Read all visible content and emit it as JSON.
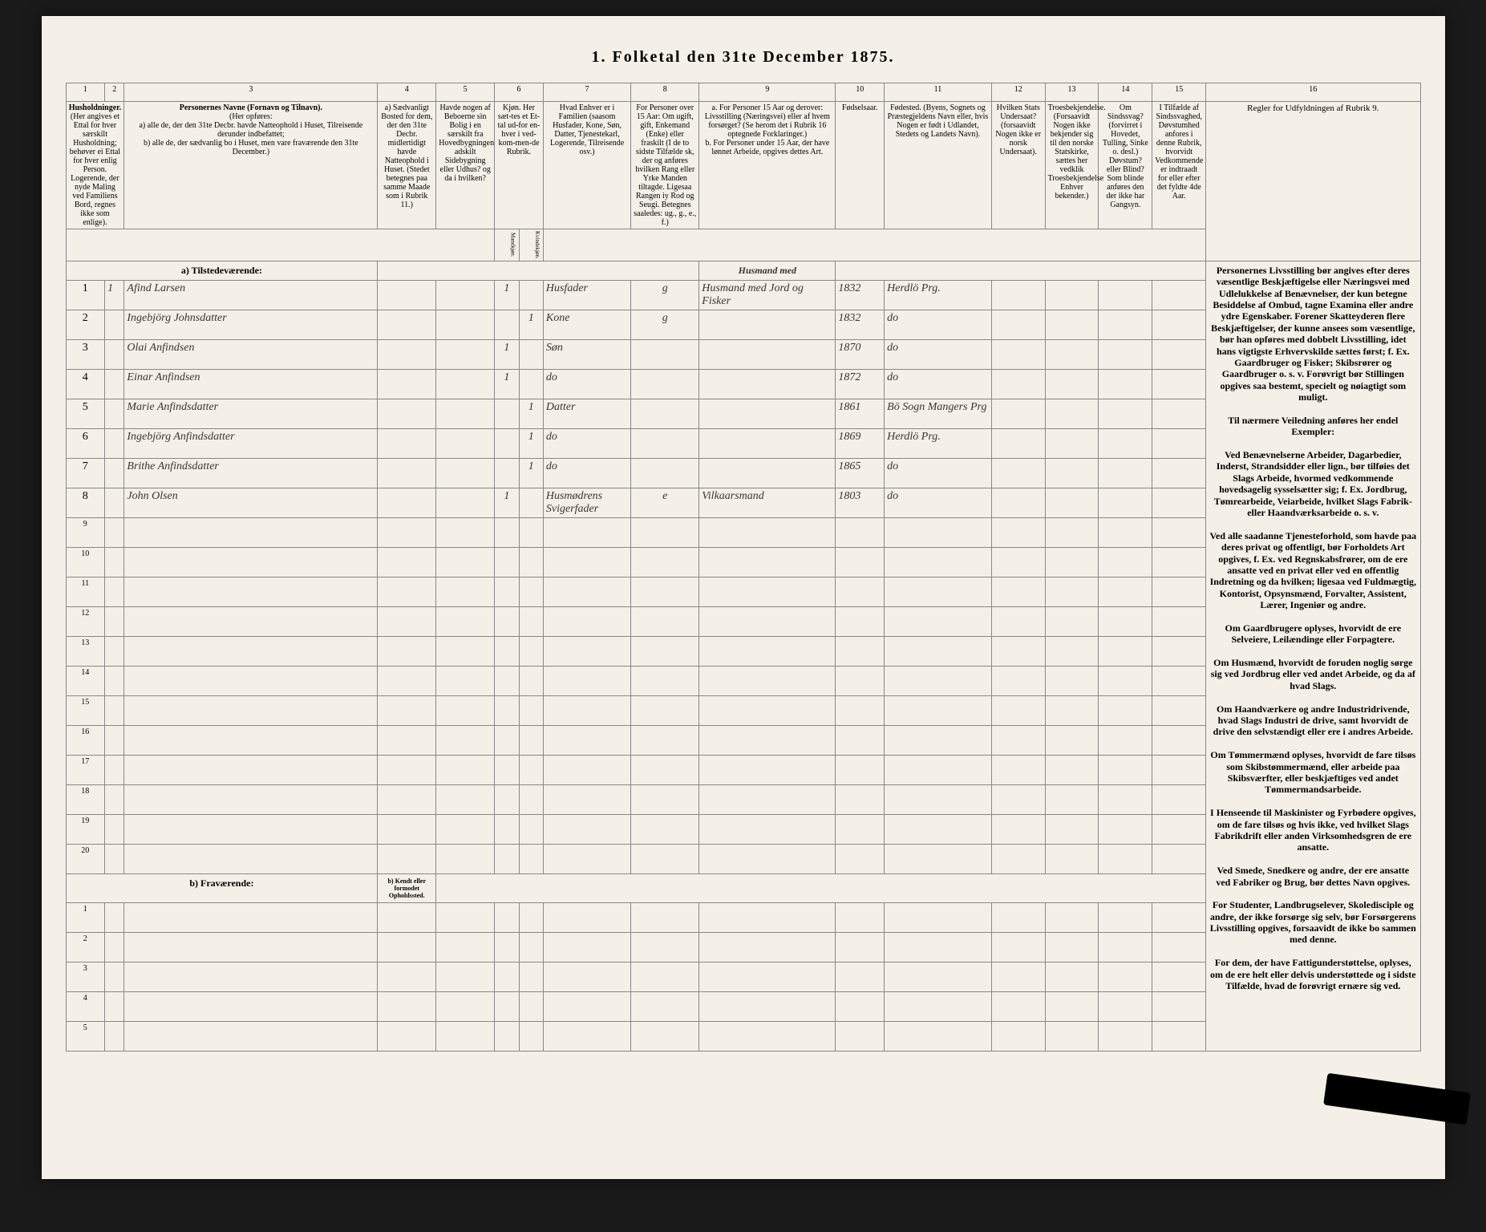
{
  "title": "1. Folketal den 31te December 1875.",
  "columns": {
    "nums": [
      "1",
      "2",
      "3",
      "4",
      "5",
      "6",
      "7",
      "8",
      "9",
      "10",
      "11",
      "12",
      "13",
      "14",
      "15",
      "16"
    ],
    "h1": "Husholdninger.",
    "h1_sub": "(Her angives et Ettal for hver særskilt Husholdning; behøver ei Ettal for hver enlig Person. Logerende, der nyde Maling ved Familiens Bord, regnes ikke som enlige).",
    "h3": "Personernes Navne (Fornavn og Tilnavn).",
    "h3_sub": "(Her opføres:\na) alle de, der den 31te Decbr. havde Natteophold i Huset, Tilreisende derunder indbefattet;\nb) alle de, der sædvanlig bo i Huset, men vare fraværende den 31te December.)",
    "h4": "a) Sædvanligt Bosted for dem, der den 31te Decbr. midlertidigt havde Natteophold i Huset. (Stedet betegnes paa samme Maade som i Rubrik 11.)",
    "h5": "Havde nogen af Beboerne sin Bolig i en særskilt fra Hovedbygningen adskilt Sidebygning eller Udhus? og da i hvilken?",
    "h6": "Kjøn. Her sæt-tes et Et-tal ud-for en-hver i ved-kom-men-de Rubrik.",
    "h6a": "Mandkjøn.",
    "h6b": "Kvindekjøn.",
    "h7": "Hvad Enhver er i Familien (saasom Husfader, Kone, Søn, Datter, Tjenestekarl, Logerende, Tilreisende osv.)",
    "h8": "For Personer over 15 Aar: Om ugift, gift, Enkemand (Enke) eller fraskilt (I de to sidste Tilfælde sk, der og anføres hvilken Rang eller Yrke Manden tiltagde. Ligesaa Rangen iy Rod og Seugi. Betegnes saaledes: ug., g., e., f.)",
    "h9": "a. For Personer 15 Aar og derover: Livsstilling (Næringsvei) eller af hvem forsørget? (Se herom det i Rubrik 16 optegnede Forklaringer.)\nb. For Personer under 15 Aar, der have lønnet Arbeide, opgives dettes Art.",
    "h10": "Fødselsaar.",
    "h11": "Fødested. (Byens, Sognets og Præstegjeldens Navn eller, hvis Nogen er født i Udlandet, Stedets og Landets Navn).",
    "h12": "Hvilken Stats Undersaat? (forsaavidt Nogen ikke er norsk Undersaat).",
    "h13": "Troesbekjendelse. (Forsaavidt Nogen ikke bekjender sig til den norske Statskirke, sættes her vedklik Troesbekjendelse Enhver bekender.)",
    "h14": "Om Sindssvag? (forvirret i Hovedet, Tulling, Sinke o. desl.) Døvstum? eller Blind? Som blinde anføres den der ikke har Gangsyn.",
    "h15": "I Tilfælde af Sindssvaghed, Døvstumhed anfores i denne Rubrik, hvorvidt Vedkommende er indtraadt for eller efter det fyldte 4de Aar.",
    "h16_title": "Regler for Udfyldningen af Rubrik 9.",
    "h16_body": "Personernes Livsstilling bør angives efter deres væsentlige Beskjæftigelse eller Næringsvei med Udlelukkelse af Benævnelser, der kun betegne Besiddelse af Ombud, tagne Examina eller andre ydre Egenskaber. Forener Skatteyderen flere Beskjæftigelser, der kunne ansees som væsentlige, bør han opføres med dobbelt Livsstilling, idet hans vigtigste Erhvervskilde sættes først; f. Ex. Gaardbruger og Fisker; Skibsrører og Gaardbruger o. s. v. Forøvrigt bør Stillingen opgives saa bestemt, specielt og nøiagtigt som muligt.\n\nTil nærmere Veiledning anføres her endel Exempler:\n\nVed Benævnelserne Arbeider, Dagarbedier, Inderst, Strandsidder eller lign., bør tilføies det Slags Arbeide, hvormed vedkommende hovedsagelig sysselsætter sig; f. Ex. Jordbrug, Tømrearbeide, Veiarbeide, hvilket Slags Fabrik- eller Haandværksarbeide o. s. v.\n\nVed alle saadanne Tjenesteforhold, som havde paa deres privat og offentligt, bør Forholdets Art opgives, f. Ex. ved Regnskabsfrører, om de ere ansatte ved en privat eller ved en offentlig Indretning og da hvilken; ligesaa ved Fuldmægtig, Kontorist, Opsynsmænd, Forvalter, Assistent, Lærer, Ingeniør og andre.\n\nOm Gaardbrugere oplyses, hvorvidt de ere Selveiere, Leilændinge eller Forpagtere.\n\nOm Husmænd, hvorvidt de foruden noglig sørge sig ved Jordbrug eller ved andet Arbeide, og da af hvad Slags.\n\nOm Haandværkere og andre Industridrivende, hvad Slags Industri de drive, samt hvorvidt de drive den selvstændigt eller ere i andres Arbeide.\n\nOm Tømmermænd oplyses, hvorvidt de fare tilsøs som Skibstømmermænd, eller arbeide paa Skibsværfter, eller beskjæftiges ved andet Tømmermandsarbeide.\n\nI Henseende til Maskinister og Fyrbødere opgives, om de fare tilsøs og hvis ikke, ved hvilket Slags Fabrikdrift eller anden Virksomhedsgren de ere ansatte.\n\nVed Smede, Snedkere og andre, der ere ansatte ved Fabriker og Brug, bør dettes Navn opgives.\n\nFor Studenter, Landbrugselever, Skoledisciple og andre, der ikke forsørge sig selv, bør Forsørgerens Livsstilling opgives, forsaavidt de ikke bo sammen med denne.\n\nFor dem, der have Fattigunderstøttelse, oplyses, om de ere helt eller delvis understøttede og i sidste Tilfælde, hvad de forøvrigt ernære sig ved."
  },
  "section_a": "a) Tilstedeværende:",
  "section_b": "b) Fraværende:",
  "section_b_col4": "b) Kendt eller formodet Opholdssted.",
  "rows": [
    {
      "n": "1",
      "hh": "1",
      "name": "Afind Larsen",
      "c4": "",
      "c5": "",
      "sex": "1",
      "sexcol": "m",
      "rel": "Husfader",
      "ms": "g",
      "occ": "Husmand med Jord og Fisker",
      "year": "1832",
      "place": "Herdlö Prg."
    },
    {
      "n": "2",
      "hh": "",
      "name": "Ingebjörg Johnsdatter",
      "c4": "",
      "c5": "",
      "sex": "1",
      "sexcol": "f",
      "rel": "Kone",
      "ms": "g",
      "occ": "",
      "year": "1832",
      "place": "do"
    },
    {
      "n": "3",
      "hh": "",
      "name": "Olai Anfindsen",
      "c4": "",
      "c5": "",
      "sex": "1",
      "sexcol": "m",
      "rel": "Søn",
      "ms": "",
      "occ": "",
      "year": "1870",
      "place": "do"
    },
    {
      "n": "4",
      "hh": "",
      "name": "Einar Anfindsen",
      "c4": "",
      "c5": "",
      "sex": "1",
      "sexcol": "m",
      "rel": "do",
      "ms": "",
      "occ": "",
      "year": "1872",
      "place": "do"
    },
    {
      "n": "5",
      "hh": "",
      "name": "Marie Anfindsdatter",
      "c4": "",
      "c5": "",
      "sex": "1",
      "sexcol": "f",
      "rel": "Datter",
      "ms": "",
      "occ": "",
      "year": "1861",
      "place": "Bö Sogn Mangers Prg"
    },
    {
      "n": "6",
      "hh": "",
      "name": "Ingebjörg Anfindsdatter",
      "c4": "",
      "c5": "",
      "sex": "1",
      "sexcol": "f",
      "rel": "do",
      "ms": "",
      "occ": "",
      "year": "1869",
      "place": "Herdlö Prg."
    },
    {
      "n": "7",
      "hh": "",
      "name": "Brithe Anfindsdatter",
      "c4": "",
      "c5": "",
      "sex": "1",
      "sexcol": "f",
      "rel": "do",
      "ms": "",
      "occ": "",
      "year": "1865",
      "place": "do"
    },
    {
      "n": "8",
      "hh": "",
      "name": "John Olsen",
      "c4": "",
      "c5": "",
      "sex": "1",
      "sexcol": "m",
      "rel": "Husmødrens Svigerfader",
      "ms": "e",
      "occ": "Vilkaarsmand",
      "year": "1803",
      "place": "do"
    }
  ],
  "empty_rows_a": [
    "9",
    "10",
    "11",
    "12",
    "13",
    "14",
    "15",
    "16",
    "17",
    "18",
    "19",
    "20"
  ],
  "empty_rows_b": [
    "1",
    "2",
    "3",
    "4",
    "5"
  ]
}
